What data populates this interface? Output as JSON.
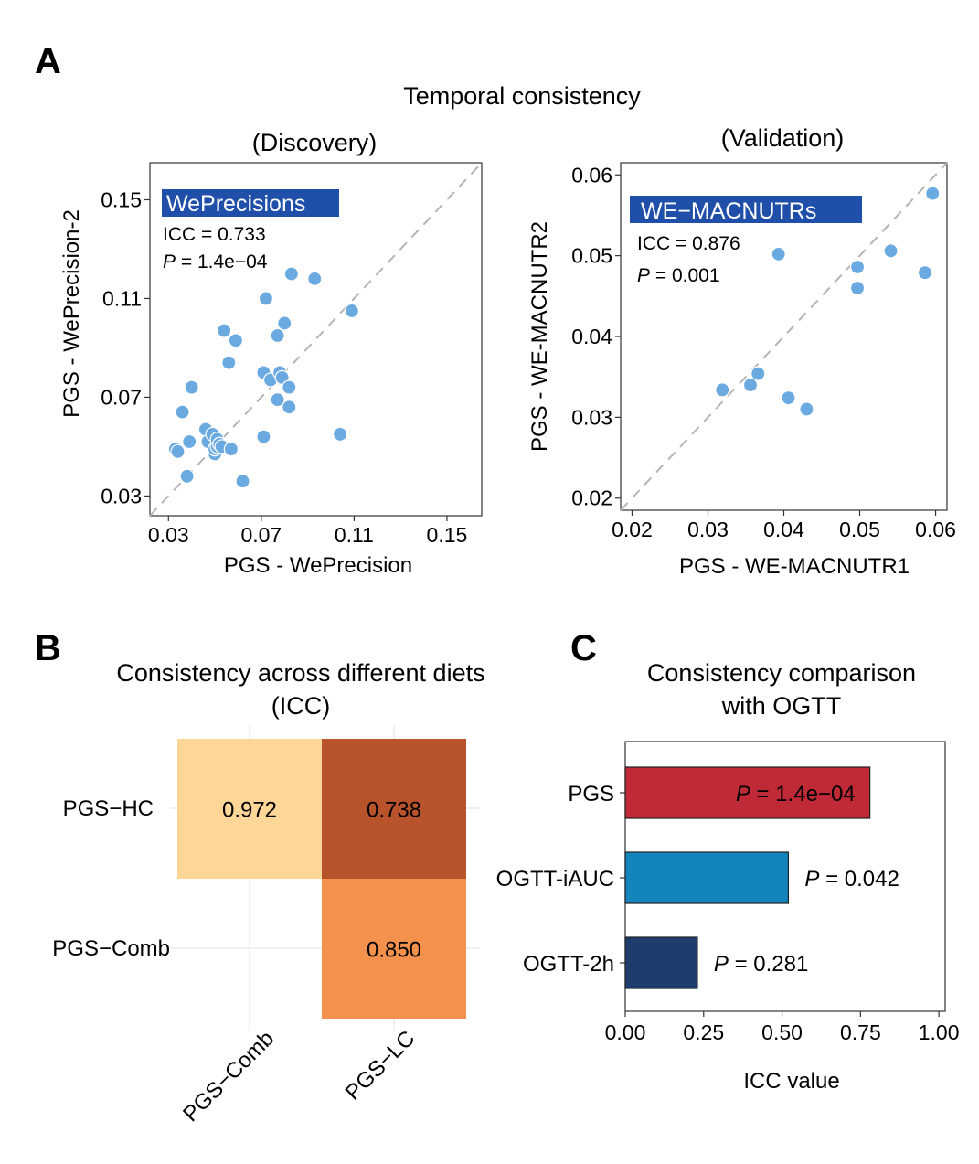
{
  "panel_labels": {
    "a": "A",
    "b": "B",
    "c": "C"
  },
  "panel_a": {
    "title": "Temporal consistency",
    "colors": {
      "points": "#6aaae0",
      "badge": "#1f4fa8",
      "diagonal": "#b5b5b5"
    }
  },
  "panel_b": {
    "title_line1": "Consistency across different diets",
    "title_line2": "(ICC)"
  },
  "panel_c": {
    "title_line1": "Consistency comparison",
    "title_line2": "with OGTT"
  },
  "chart_data": [
    {
      "id": "discovery",
      "type": "scatter",
      "title": "(Discovery)",
      "xlabel": "PGS - WePrecision",
      "ylabel": "PGS - WePrecision-2",
      "xlim": [
        0.022,
        0.165
      ],
      "ylim": [
        0.022,
        0.165
      ],
      "xticks": [
        0.03,
        0.07,
        0.11,
        0.15
      ],
      "yticks": [
        0.03,
        0.07,
        0.11,
        0.15
      ],
      "xtick_labels": [
        "0.03",
        "0.07",
        "0.11",
        "0.15"
      ],
      "ytick_labels": [
        "0.03",
        "0.07",
        "0.11",
        "0.15"
      ],
      "diagonal": true,
      "badge": "WePrecisions",
      "annotations": {
        "icc": "ICC = 0.733",
        "p_label": "P",
        "p_value": " = 1.4e−04"
      },
      "points": [
        [
          0.033,
          0.049
        ],
        [
          0.034,
          0.048
        ],
        [
          0.036,
          0.064
        ],
        [
          0.038,
          0.038
        ],
        [
          0.039,
          0.052
        ],
        [
          0.04,
          0.074
        ],
        [
          0.046,
          0.057
        ],
        [
          0.047,
          0.052
        ],
        [
          0.049,
          0.055
        ],
        [
          0.05,
          0.047
        ],
        [
          0.05,
          0.049
        ],
        [
          0.051,
          0.05
        ],
        [
          0.051,
          0.053
        ],
        [
          0.052,
          0.051
        ],
        [
          0.053,
          0.05
        ],
        [
          0.054,
          0.097
        ],
        [
          0.056,
          0.084
        ],
        [
          0.057,
          0.049
        ],
        [
          0.059,
          0.093
        ],
        [
          0.062,
          0.036
        ],
        [
          0.071,
          0.054
        ],
        [
          0.071,
          0.08
        ],
        [
          0.072,
          0.11
        ],
        [
          0.074,
          0.077
        ],
        [
          0.077,
          0.095
        ],
        [
          0.077,
          0.069
        ],
        [
          0.078,
          0.08
        ],
        [
          0.079,
          0.078
        ],
        [
          0.08,
          0.1
        ],
        [
          0.082,
          0.066
        ],
        [
          0.082,
          0.074
        ],
        [
          0.083,
          0.12
        ],
        [
          0.093,
          0.118
        ],
        [
          0.104,
          0.055
        ],
        [
          0.109,
          0.105
        ]
      ]
    },
    {
      "id": "validation",
      "type": "scatter",
      "title": "(Validation)",
      "xlabel": "PGS - WE-MACNUTR1",
      "ylabel": "PGS - WE-MACNUTR2",
      "xlim": [
        0.0185,
        0.0615
      ],
      "ylim": [
        0.0185,
        0.0615
      ],
      "xticks": [
        0.02,
        0.03,
        0.04,
        0.05,
        0.06
      ],
      "yticks": [
        0.02,
        0.03,
        0.04,
        0.05,
        0.06
      ],
      "xtick_labels": [
        "0.02",
        "0.03",
        "0.04",
        "0.05",
        "0.06"
      ],
      "ytick_labels": [
        "0.02",
        "0.03",
        "0.04",
        "0.05",
        "0.06"
      ],
      "diagonal": true,
      "badge": "WE−MACNUTRs",
      "annotations": {
        "icc": "ICC =  0.876",
        "p_label": "P",
        "p_value": " =  0.001"
      },
      "points": [
        [
          0.0319,
          0.0334
        ],
        [
          0.0356,
          0.034
        ],
        [
          0.0366,
          0.0354
        ],
        [
          0.0393,
          0.0502
        ],
        [
          0.0406,
          0.0324
        ],
        [
          0.043,
          0.031
        ],
        [
          0.0497,
          0.0486
        ],
        [
          0.0497,
          0.046
        ],
        [
          0.0541,
          0.0506
        ],
        [
          0.0586,
          0.0479
        ],
        [
          0.0596,
          0.0577
        ]
      ]
    },
    {
      "id": "diet_heatmap",
      "type": "heatmap",
      "rows": [
        "PGS−HC",
        "PGS−Comb"
      ],
      "columns": [
        "PGS−Comb",
        "PGS−LC"
      ],
      "values": [
        [
          0.972,
          0.738
        ],
        [
          null,
          0.85
        ]
      ],
      "value_labels": [
        [
          "0.972",
          "0.738"
        ],
        [
          "",
          "0.850"
        ]
      ],
      "colors": [
        [
          "#fed698",
          "#b9532b"
        ],
        [
          null,
          "#f3914d"
        ]
      ]
    },
    {
      "id": "ogtt_bars",
      "type": "bar",
      "orientation": "horizontal",
      "categories": [
        "PGS",
        "OGTT-iAUC",
        "OGTT-2h"
      ],
      "values": [
        0.78,
        0.52,
        0.23
      ],
      "colors": [
        "#c02a37",
        "#1384bc",
        "#1e3c6d"
      ],
      "p_labels": [
        "P",
        "P",
        "P"
      ],
      "p_values": [
        " = 1.4e−04",
        " = 0.042",
        " = 0.281"
      ],
      "xlabel": "ICC value",
      "xlim": [
        0,
        1.02
      ],
      "xticks": [
        0,
        0.25,
        0.5,
        0.75,
        1.0
      ],
      "xtick_labels": [
        "0.00",
        "0.25",
        "0.50",
        "0.75",
        "1.00"
      ]
    }
  ]
}
